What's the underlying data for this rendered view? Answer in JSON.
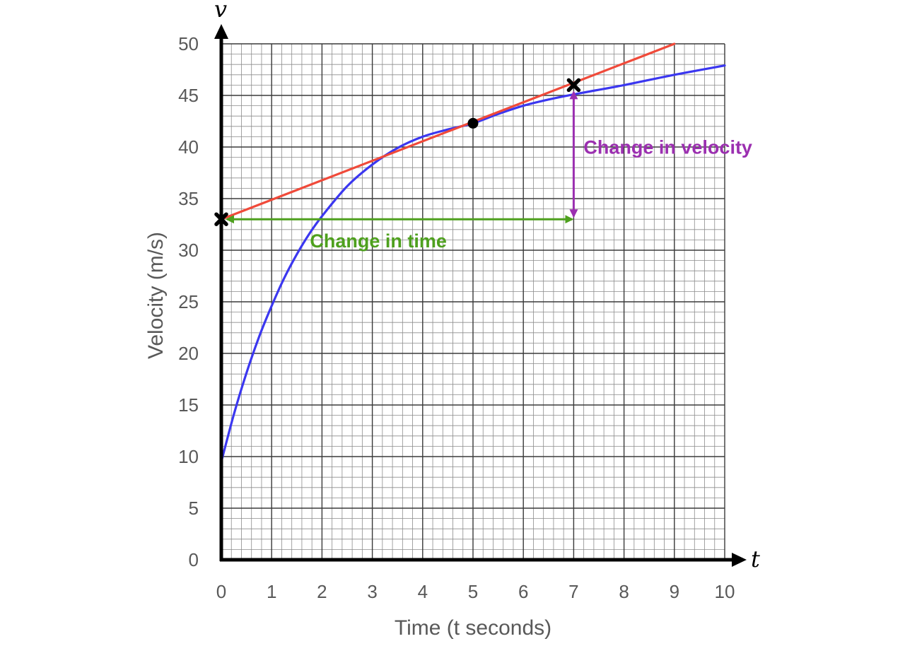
{
  "chart_data": {
    "type": "line",
    "xlabel": "Time (t seconds)",
    "ylabel": "Velocity (m/s)",
    "x_axis_var": "t",
    "y_axis_var": "v",
    "xlim": [
      0,
      10
    ],
    "ylim": [
      0,
      50
    ],
    "x_ticks": [
      0,
      1,
      2,
      3,
      4,
      5,
      6,
      7,
      8,
      9,
      10
    ],
    "y_ticks": [
      0,
      5,
      10,
      15,
      20,
      25,
      30,
      35,
      40,
      45,
      50
    ],
    "grid": true,
    "grid_minor_step": {
      "x": 0.2,
      "y": 1
    },
    "series": [
      {
        "role": "curve",
        "color": "#3b37f0",
        "x": [
          0,
          0.25,
          0.5,
          0.75,
          1,
          1.25,
          1.5,
          1.75,
          2,
          2.5,
          3,
          3.5,
          4,
          4.5,
          5,
          5.5,
          6,
          6.5,
          7,
          8,
          9,
          10
        ],
        "y": [
          9.5,
          14.1,
          18.1,
          21.6,
          24.6,
          27.3,
          29.6,
          31.6,
          33.3,
          36.2,
          38.3,
          39.9,
          41.0,
          41.7,
          42.3,
          43.2,
          44.0,
          44.6,
          45.1,
          46.0,
          47.0,
          47.9
        ]
      },
      {
        "role": "tangent",
        "color": "#f04a3a",
        "x": [
          0,
          9
        ],
        "y": [
          33,
          50
        ]
      }
    ],
    "points": [
      {
        "x": 0,
        "y": 33,
        "marker": "cross"
      },
      {
        "x": 7,
        "y": 46,
        "marker": "cross"
      },
      {
        "x": 5,
        "y": 42.3,
        "marker": "dot"
      }
    ],
    "annotations": [
      {
        "label": "Change in time",
        "color": "#4ea01e",
        "from": [
          0,
          33
        ],
        "to": [
          7,
          33
        ],
        "orientation": "horizontal"
      },
      {
        "label": "Change in velocity",
        "color": "#9b2fb0",
        "from": [
          7,
          33
        ],
        "to": [
          7,
          46
        ],
        "orientation": "vertical"
      }
    ]
  }
}
